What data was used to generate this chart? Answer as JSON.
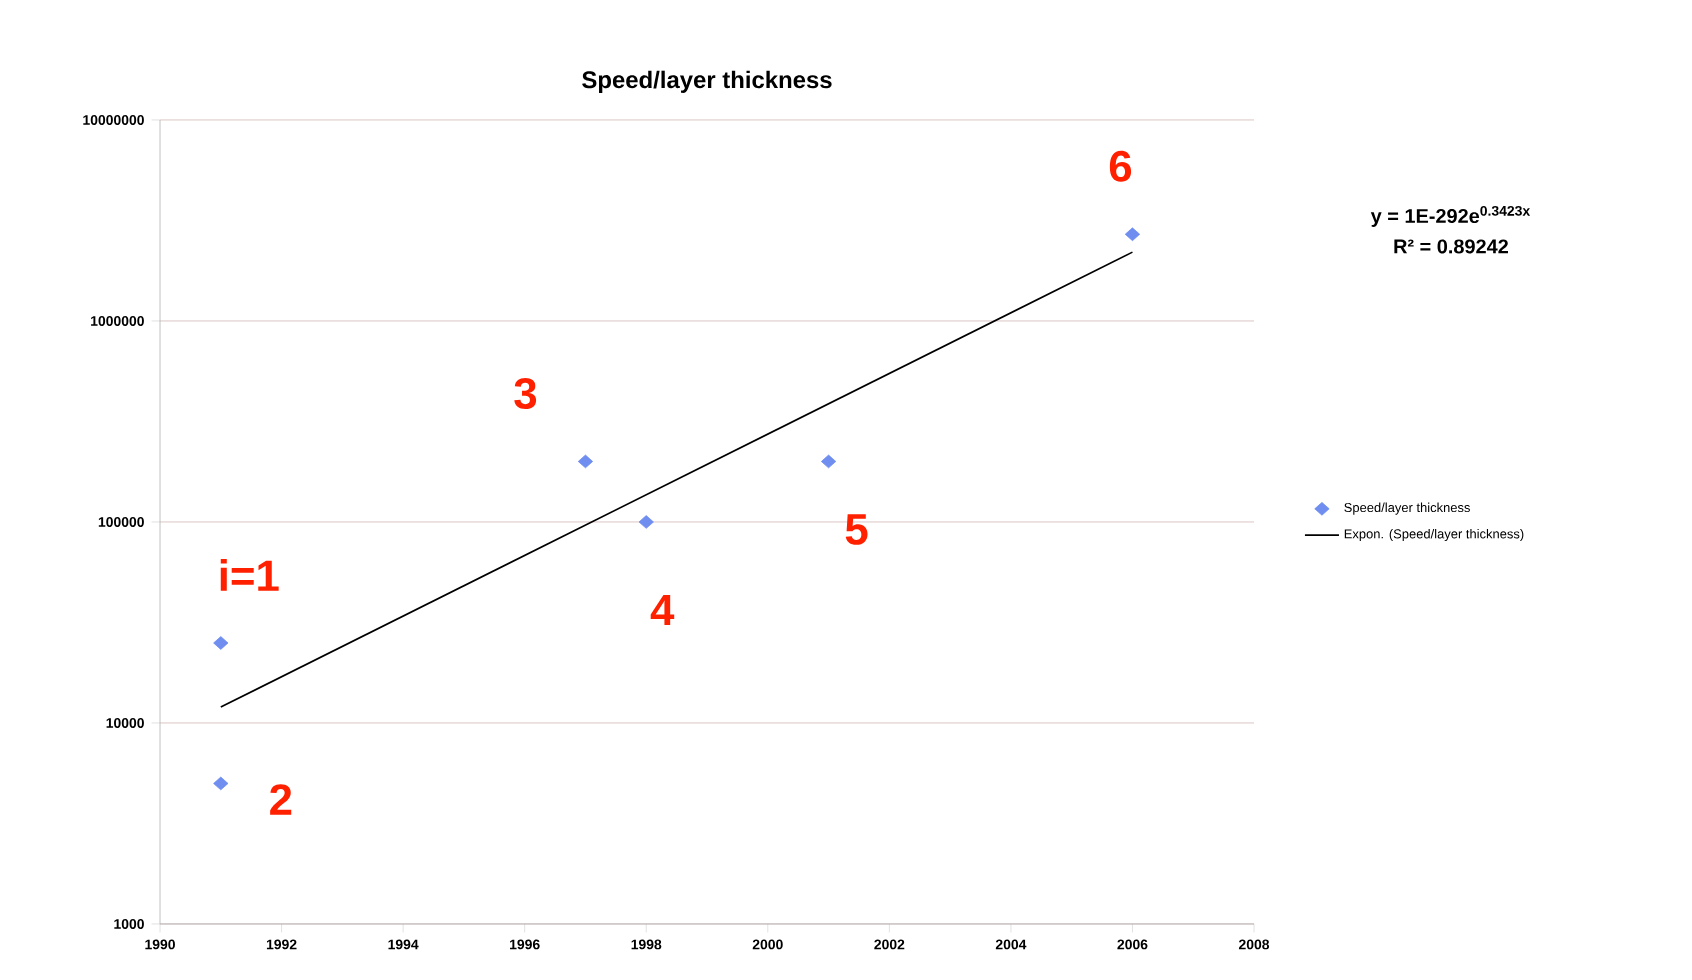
{
  "chart_data": {
    "type": "scatter",
    "title": "Speed/layer thickness",
    "x": [
      1991,
      1991,
      1997,
      1998,
      2001,
      2006
    ],
    "series": [
      {
        "name": "Speed/layer thickness",
        "color": "#6f8ef0",
        "marker": "diamond",
        "values": [
          25000,
          5000,
          200000,
          100000,
          200000,
          2700000
        ]
      },
      {
        "name": "Expon. (Speed/layer thickness)",
        "type": "line",
        "color": "#000000",
        "x": [
          1991,
          2006
        ],
        "values": [
          12000,
          2200000
        ]
      }
    ],
    "log": "y",
    "xlim": [
      1990,
      2008
    ],
    "xticks": [
      1990,
      1992,
      1994,
      1996,
      1998,
      2000,
      2002,
      2004,
      2006,
      2008
    ],
    "ylim": [
      1000,
      10000000
    ],
    "yticks": [
      1000,
      10000,
      100000,
      1000000,
      10000000
    ],
    "grid": "y",
    "legend": "right",
    "annotations": [
      {
        "text": "i=1",
        "x": 1991,
        "y": 25000
      },
      {
        "text": "2",
        "x": 1991,
        "y": 5000
      },
      {
        "text": "3",
        "x": 1997,
        "y": 200000
      },
      {
        "text": "4",
        "x": 1998,
        "y": 100000
      },
      {
        "text": "5",
        "x": 2001,
        "y": 200000
      },
      {
        "text": "6",
        "x": 2006,
        "y": 2700000
      },
      "y = 1E-292e$^{0.3423x}$",
      "R² = 0.89242"
    ]
  }
}
